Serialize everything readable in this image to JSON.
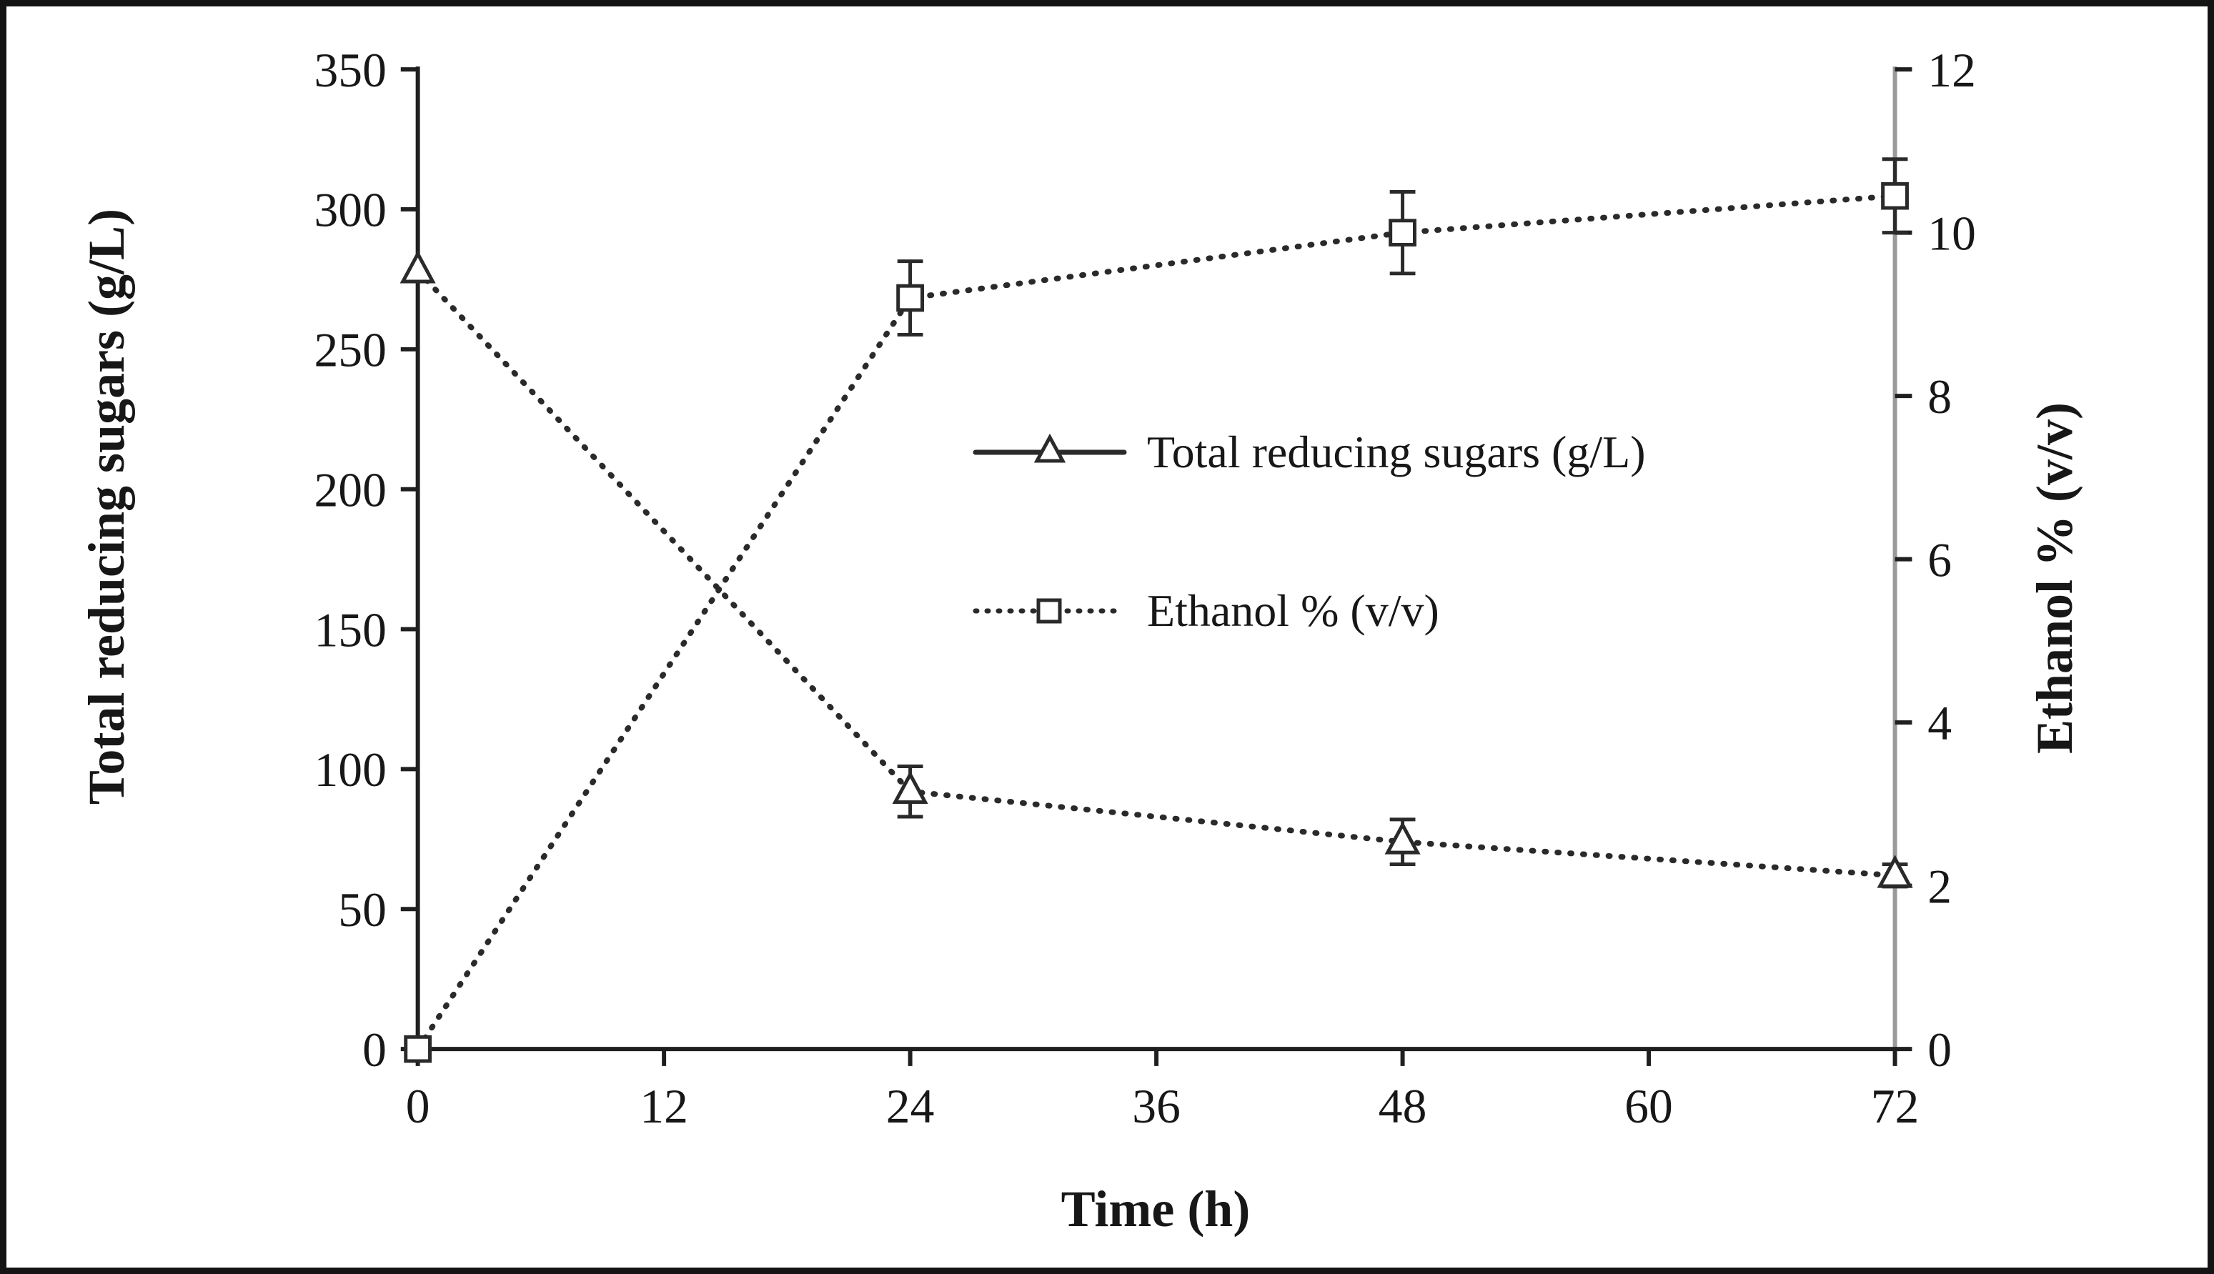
{
  "figure": {
    "background": "#ffffff",
    "border_color": "#141414"
  },
  "chart_data": {
    "type": "line",
    "title": "",
    "xlabel": "Time (h)",
    "xlim": [
      0,
      72
    ],
    "x_ticks": [
      0,
      12,
      24,
      36,
      48,
      60,
      72
    ],
    "grid": false,
    "legend_position": "center-inside",
    "axes": {
      "left": {
        "label": "Total reducing sugars (g/L)",
        "lim": [
          0,
          350
        ],
        "ticks": [
          350,
          300,
          250,
          200,
          150,
          100,
          50,
          0
        ]
      },
      "right": {
        "label": "Ethanol % (v/v)",
        "lim": [
          0,
          12
        ],
        "ticks": [
          12,
          10,
          8,
          6,
          4,
          2,
          0
        ]
      }
    },
    "series": [
      {
        "name": "Total reducing sugars (g/L)",
        "axis": "left",
        "marker": "triangle",
        "plot_line_style": "dotted",
        "legend_line_style": "solid",
        "color": "#2a2a2a",
        "x": [
          0,
          24,
          48,
          72
        ],
        "y": [
          278,
          92,
          74,
          62
        ],
        "yerr": [
          0,
          9,
          8,
          4
        ]
      },
      {
        "name": "Ethanol % (v/v)",
        "axis": "right",
        "marker": "square",
        "plot_line_style": "dotted",
        "legend_line_style": "dotted",
        "color": "#2a2a2a",
        "x": [
          0,
          24,
          48,
          72
        ],
        "y": [
          0,
          9.2,
          10.0,
          10.45
        ],
        "yerr": [
          0,
          0.45,
          0.5,
          0.45
        ]
      }
    ],
    "colors": {
      "axis": "#1f1f1f",
      "right_axis_line": "#9a9a9a",
      "text": "#171717"
    }
  }
}
